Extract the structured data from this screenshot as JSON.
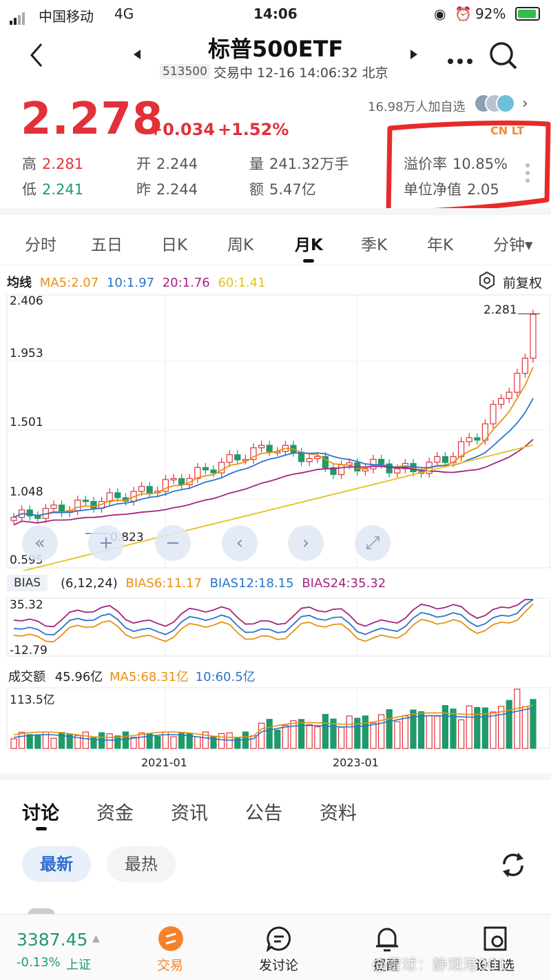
{
  "status_bar": {
    "carrier": "中国移动",
    "network": "4G",
    "time": "14:06",
    "battery": "92%"
  },
  "header": {
    "title": "标普500ETF",
    "code": "513500",
    "status_line": "交易中 12-16 14:06:32 北京",
    "followers": "16.98万人加自选"
  },
  "quote": {
    "price": "2.278",
    "change": "+0.034",
    "change_pct": "+1.52%",
    "badge": "CN LT",
    "stats": {
      "high_label": "高",
      "high": "2.281",
      "low_label": "低",
      "low": "2.241",
      "open_label": "开",
      "open": "2.244",
      "prev_label": "昨",
      "prev": "2.244",
      "volume_label": "量",
      "volume": "241.32万手",
      "amount_label": "额",
      "amount": "5.47亿",
      "premium_label": "溢价率",
      "premium": "10.85%",
      "nav_label": "单位净值",
      "nav": "2.05"
    }
  },
  "period_tabs": [
    "分时",
    "五日",
    "日K",
    "周K",
    "月K",
    "季K",
    "年K",
    "分钟▾"
  ],
  "active_tab": "月K",
  "ma_row": {
    "label": "均线",
    "ma5": "MA5:2.07",
    "ma10": "10:1.97",
    "ma20": "20:1.76",
    "ma60": "60:1.41",
    "restore": "前复权"
  },
  "kline_axis": {
    "y1": "2.406",
    "y2": "1.953",
    "y3": "1.501",
    "y4": "1.048",
    "y5": "0.595",
    "high_mark": "2.281",
    "low_mark": "0.823"
  },
  "bias_row": {
    "label": "BIAS",
    "params": "(6,12,24)",
    "b6": "BIAS6:11.17",
    "b12": "BIAS12:18.15",
    "b24": "BIAS24:35.32",
    "top": "35.32",
    "bottom": "-12.79"
  },
  "volume_row": {
    "label": "成交额",
    "value": "45.96亿",
    "ma5": "MA5:68.31亿",
    "ma10": "10:60.5亿",
    "top": "113.5亿"
  },
  "x_axis": {
    "d1": "2021-01",
    "d2": "2023-01"
  },
  "colors": {
    "up": "#e2313a",
    "down": "#1f9a6a",
    "ma5": "#e8910f",
    "ma10": "#2a74c9",
    "ma20": "#a3237f",
    "ma60": "#e3c11a"
  },
  "discussion_tabs": [
    "讨论",
    "资金",
    "资讯",
    "公告",
    "资料"
  ],
  "filters": {
    "latest": "最新",
    "hottest": "最热"
  },
  "bottom_bar": {
    "index_value": "3387.45",
    "index_change": "-0.13%",
    "index_name": "上证",
    "trade": "交易",
    "post": "发讨论",
    "remind": "提醒",
    "watch": "设自选"
  },
  "watermark": "@雪球：静观港001"
}
